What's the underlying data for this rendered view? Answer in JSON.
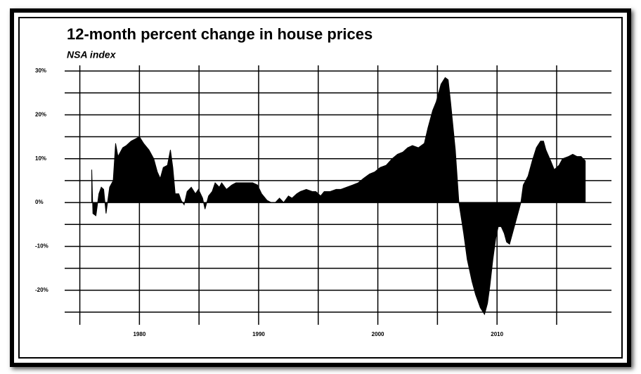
{
  "chart_data": {
    "type": "area",
    "title": "12-month percent change in house prices",
    "subtitle": "NSA index",
    "color": "#000000",
    "grid": true,
    "xlim": [
      1974.2,
      2019.6
    ],
    "ylim": [
      -25,
      30
    ],
    "xticks": [
      1980,
      1990,
      2000,
      2010
    ],
    "xticks_minor": [
      1975,
      1985,
      1995,
      2005,
      2015
    ],
    "yticks": [
      {
        "value": 30,
        "label": "30%"
      },
      {
        "value": 20,
        "label": "20%"
      },
      {
        "value": 10,
        "label": "10%"
      },
      {
        "value": 0,
        "label": "0%"
      },
      {
        "value": -10,
        "label": "-10%"
      },
      {
        "value": -20,
        "label": "-20%"
      }
    ],
    "yticks_minor": [
      25,
      15,
      5,
      -5,
      -15,
      -25
    ],
    "x": [
      1976.0,
      1976.1,
      1976.35,
      1976.6,
      1976.8,
      1977.0,
      1977.2,
      1977.35,
      1977.5,
      1977.8,
      1978.0,
      1978.2,
      1978.6,
      1978.9,
      1979.3,
      1979.65,
      1980.0,
      1980.35,
      1980.8,
      1981.2,
      1981.5,
      1981.75,
      1982.0,
      1982.35,
      1982.6,
      1982.8,
      1983.0,
      1983.3,
      1983.5,
      1983.75,
      1984.0,
      1984.35,
      1984.7,
      1984.95,
      1985.3,
      1985.5,
      1985.8,
      1986.1,
      1986.35,
      1986.7,
      1986.9,
      1987.3,
      1987.75,
      1988.1,
      1988.6,
      1989.05,
      1989.5,
      1989.9,
      1990.25,
      1990.7,
      1991.05,
      1991.4,
      1991.75,
      1992.1,
      1992.5,
      1992.8,
      1993.2,
      1993.5,
      1994.0,
      1994.5,
      1994.8,
      1995.2,
      1995.5,
      1996.0,
      1996.5,
      1996.9,
      1997.4,
      1997.9,
      1998.35,
      1998.8,
      1999.3,
      1999.75,
      2000.2,
      2000.7,
      2001.2,
      2001.65,
      2002.1,
      2002.5,
      2002.9,
      2003.4,
      2003.9,
      2004.2,
      2004.6,
      2004.9,
      2005.3,
      2005.65,
      2005.9,
      2006.1,
      2006.5,
      2006.8,
      2007.2,
      2007.5,
      2007.9,
      2008.2,
      2008.6,
      2008.95,
      2009.2,
      2009.4,
      2009.65,
      2009.9,
      2010.1,
      2010.35,
      2010.6,
      2010.8,
      2011.05,
      2011.3,
      2011.6,
      2012.0,
      2012.2,
      2012.6,
      2012.95,
      2013.3,
      2013.65,
      2013.9,
      2014.1,
      2014.5,
      2014.8,
      2015.2,
      2015.5,
      2016.0,
      2016.35,
      2016.7,
      2017.05,
      2017.4
    ],
    "values": [
      7.5,
      -2.5,
      -3,
      2,
      3.5,
      3,
      -2.5,
      0.5,
      3.5,
      5,
      13.5,
      10.5,
      12.5,
      13,
      14,
      14.5,
      15,
      13.5,
      12,
      10,
      7,
      5.5,
      8,
      8.5,
      12,
      8,
      2,
      2,
      0.5,
      -0.5,
      2.5,
      3.5,
      2,
      3,
      1,
      -1.5,
      1.5,
      2.5,
      4.5,
      3.5,
      4.5,
      3,
      4,
      4.5,
      4.5,
      4.5,
      4.5,
      4,
      2,
      0.5,
      0,
      0,
      1,
      0,
      1.5,
      1,
      2,
      2.5,
      3,
      2.5,
      2.5,
      1.5,
      2.5,
      2.5,
      3,
      3,
      3.5,
      4,
      4.5,
      5.5,
      6.5,
      7,
      8,
      8.5,
      10,
      11,
      11.5,
      12.5,
      13,
      12.5,
      13.5,
      17,
      21,
      23,
      27,
      28.5,
      28,
      23,
      12,
      0,
      -7,
      -13,
      -18,
      -21,
      -24,
      -25.5,
      -23,
      -19,
      -13,
      -8,
      -5.5,
      -5.5,
      -7,
      -9,
      -9.5,
      -7,
      -4,
      0,
      4,
      6,
      9.5,
      12.5,
      14,
      14,
      12,
      9.5,
      7.5,
      8.5,
      10,
      10.5,
      11,
      10.5,
      10.5,
      9.5
    ]
  }
}
